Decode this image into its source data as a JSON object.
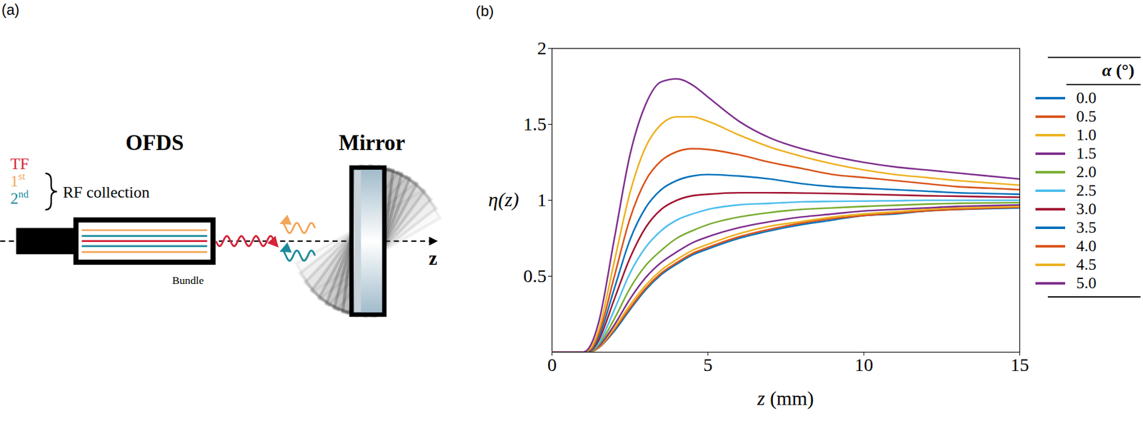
{
  "diagram": {
    "panel_label": "(a)",
    "ofds": "OFDS",
    "mirror": "Mirror",
    "signals": [
      {
        "text": "TF",
        "color": "#d6243a"
      },
      {
        "text": "1st",
        "color": "#f2a65a"
      },
      {
        "text": "2nd",
        "color": "#1b8a9a"
      }
    ],
    "brace_label": "RF collection",
    "bundle": "Bundle",
    "axis": "z"
  },
  "chart_data": {
    "type": "line",
    "panel_label": "(b)",
    "x_label": "z (mm)",
    "y_label": "η(z)",
    "xlim": [
      0,
      15
    ],
    "xticks": [
      0,
      5,
      10,
      15
    ],
    "ylim": [
      0,
      2
    ],
    "yticks": [
      0.5,
      1,
      1.5,
      2
    ],
    "legend": "right",
    "legend_title": "α (°)",
    "x": [
      0,
      1,
      1.25,
      1.5,
      2,
      2.5,
      3,
      3.5,
      4,
      4.5,
      5,
      6,
      7,
      8,
      9,
      10,
      11,
      12,
      13,
      14,
      15
    ],
    "series": [
      {
        "name": "0.0",
        "color": "#0072BD",
        "values": [
          0,
          0,
          0.003,
          0.03,
          0.14,
          0.28,
          0.41,
          0.51,
          0.58,
          0.64,
          0.68,
          0.75,
          0.8,
          0.84,
          0.87,
          0.9,
          0.91,
          0.93,
          0.94,
          0.945,
          0.95
        ]
      },
      {
        "name": "0.5",
        "color": "#D95319",
        "values": [
          0,
          0,
          0.003,
          0.03,
          0.15,
          0.29,
          0.42,
          0.52,
          0.59,
          0.65,
          0.69,
          0.76,
          0.81,
          0.85,
          0.88,
          0.9,
          0.915,
          0.93,
          0.94,
          0.948,
          0.955
        ]
      },
      {
        "name": "1.0",
        "color": "#EDB120",
        "values": [
          0,
          0,
          0.004,
          0.035,
          0.16,
          0.31,
          0.44,
          0.54,
          0.61,
          0.67,
          0.71,
          0.78,
          0.83,
          0.86,
          0.89,
          0.91,
          0.925,
          0.94,
          0.95,
          0.955,
          0.96
        ]
      },
      {
        "name": "1.5",
        "color": "#7E2F8E",
        "values": [
          0,
          0,
          0.005,
          0.04,
          0.18,
          0.35,
          0.49,
          0.59,
          0.66,
          0.72,
          0.76,
          0.82,
          0.86,
          0.89,
          0.91,
          0.93,
          0.94,
          0.95,
          0.96,
          0.965,
          0.97
        ]
      },
      {
        "name": "2.0",
        "color": "#77AC30",
        "values": [
          0,
          0,
          0.005,
          0.05,
          0.22,
          0.42,
          0.57,
          0.67,
          0.75,
          0.8,
          0.84,
          0.89,
          0.92,
          0.94,
          0.95,
          0.96,
          0.967,
          0.975,
          0.98,
          0.983,
          0.985
        ]
      },
      {
        "name": "2.5",
        "color": "#4DBEEE",
        "values": [
          0,
          0,
          0.01,
          0.06,
          0.28,
          0.52,
          0.69,
          0.8,
          0.87,
          0.91,
          0.94,
          0.97,
          0.98,
          0.99,
          0.993,
          0.995,
          0.997,
          1.0,
          1.0,
          1.0,
          1.0
        ]
      },
      {
        "name": "3.0",
        "color": "#A2142F",
        "values": [
          0,
          0,
          0.01,
          0.08,
          0.35,
          0.62,
          0.82,
          0.94,
          1.0,
          1.03,
          1.04,
          1.05,
          1.05,
          1.048,
          1.045,
          1.04,
          1.035,
          1.03,
          1.027,
          1.023,
          1.02
        ]
      },
      {
        "name": "3.5",
        "color": "#0072BD",
        "values": [
          0,
          0,
          0.015,
          0.1,
          0.42,
          0.74,
          0.95,
          1.07,
          1.13,
          1.16,
          1.17,
          1.16,
          1.14,
          1.11,
          1.09,
          1.08,
          1.07,
          1.06,
          1.05,
          1.045,
          1.04
        ]
      },
      {
        "name": "4.0",
        "color": "#D95319",
        "values": [
          0,
          0,
          0.02,
          0.12,
          0.5,
          0.88,
          1.13,
          1.26,
          1.32,
          1.34,
          1.335,
          1.3,
          1.25,
          1.21,
          1.17,
          1.15,
          1.13,
          1.11,
          1.09,
          1.08,
          1.07
        ]
      },
      {
        "name": "4.5",
        "color": "#EDB120",
        "values": [
          0,
          0,
          0.03,
          0.15,
          0.6,
          1.05,
          1.35,
          1.5,
          1.55,
          1.55,
          1.52,
          1.43,
          1.35,
          1.29,
          1.24,
          1.2,
          1.17,
          1.15,
          1.13,
          1.115,
          1.1
        ]
      },
      {
        "name": "5.0",
        "color": "#7E2F8E",
        "values": [
          0,
          0,
          0.05,
          0.2,
          0.75,
          1.3,
          1.63,
          1.78,
          1.8,
          1.76,
          1.68,
          1.52,
          1.41,
          1.34,
          1.29,
          1.25,
          1.22,
          1.2,
          1.18,
          1.16,
          1.14
        ]
      }
    ]
  }
}
